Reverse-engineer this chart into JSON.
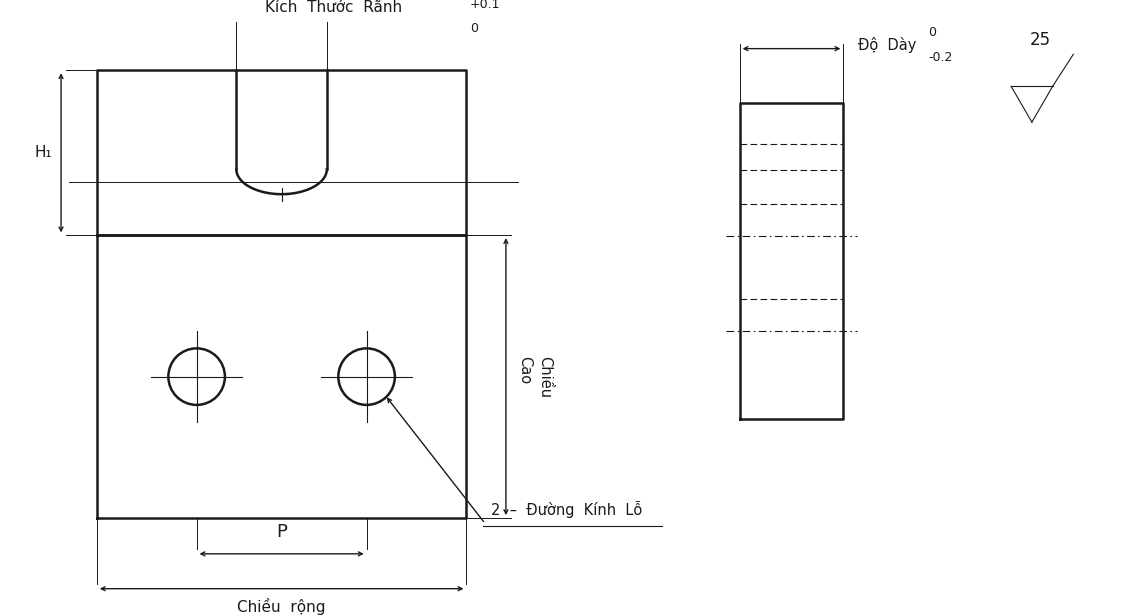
{
  "bg_color": "#ffffff",
  "line_color": "#1a1a1a",
  "fig_width": 11.41,
  "fig_height": 6.16,
  "dpi": 100,
  "labels": {
    "kich_thuoc_ranh": "Kích  Thước  Rãnh",
    "tol_top": "+0.1",
    "tol_bot": "0",
    "chieu_cao": "Chiều\nCao",
    "chieu_rong": "Chiều  rộng",
    "p_label": "P",
    "h1_label": "H",
    "duong_kinh_lo": "2  –  Đường  Kính  Lỗ",
    "do_day": "Độ  Dày",
    "do_day_tol_top": "0",
    "do_day_tol_bot": "-0.2",
    "roughness": "25"
  }
}
